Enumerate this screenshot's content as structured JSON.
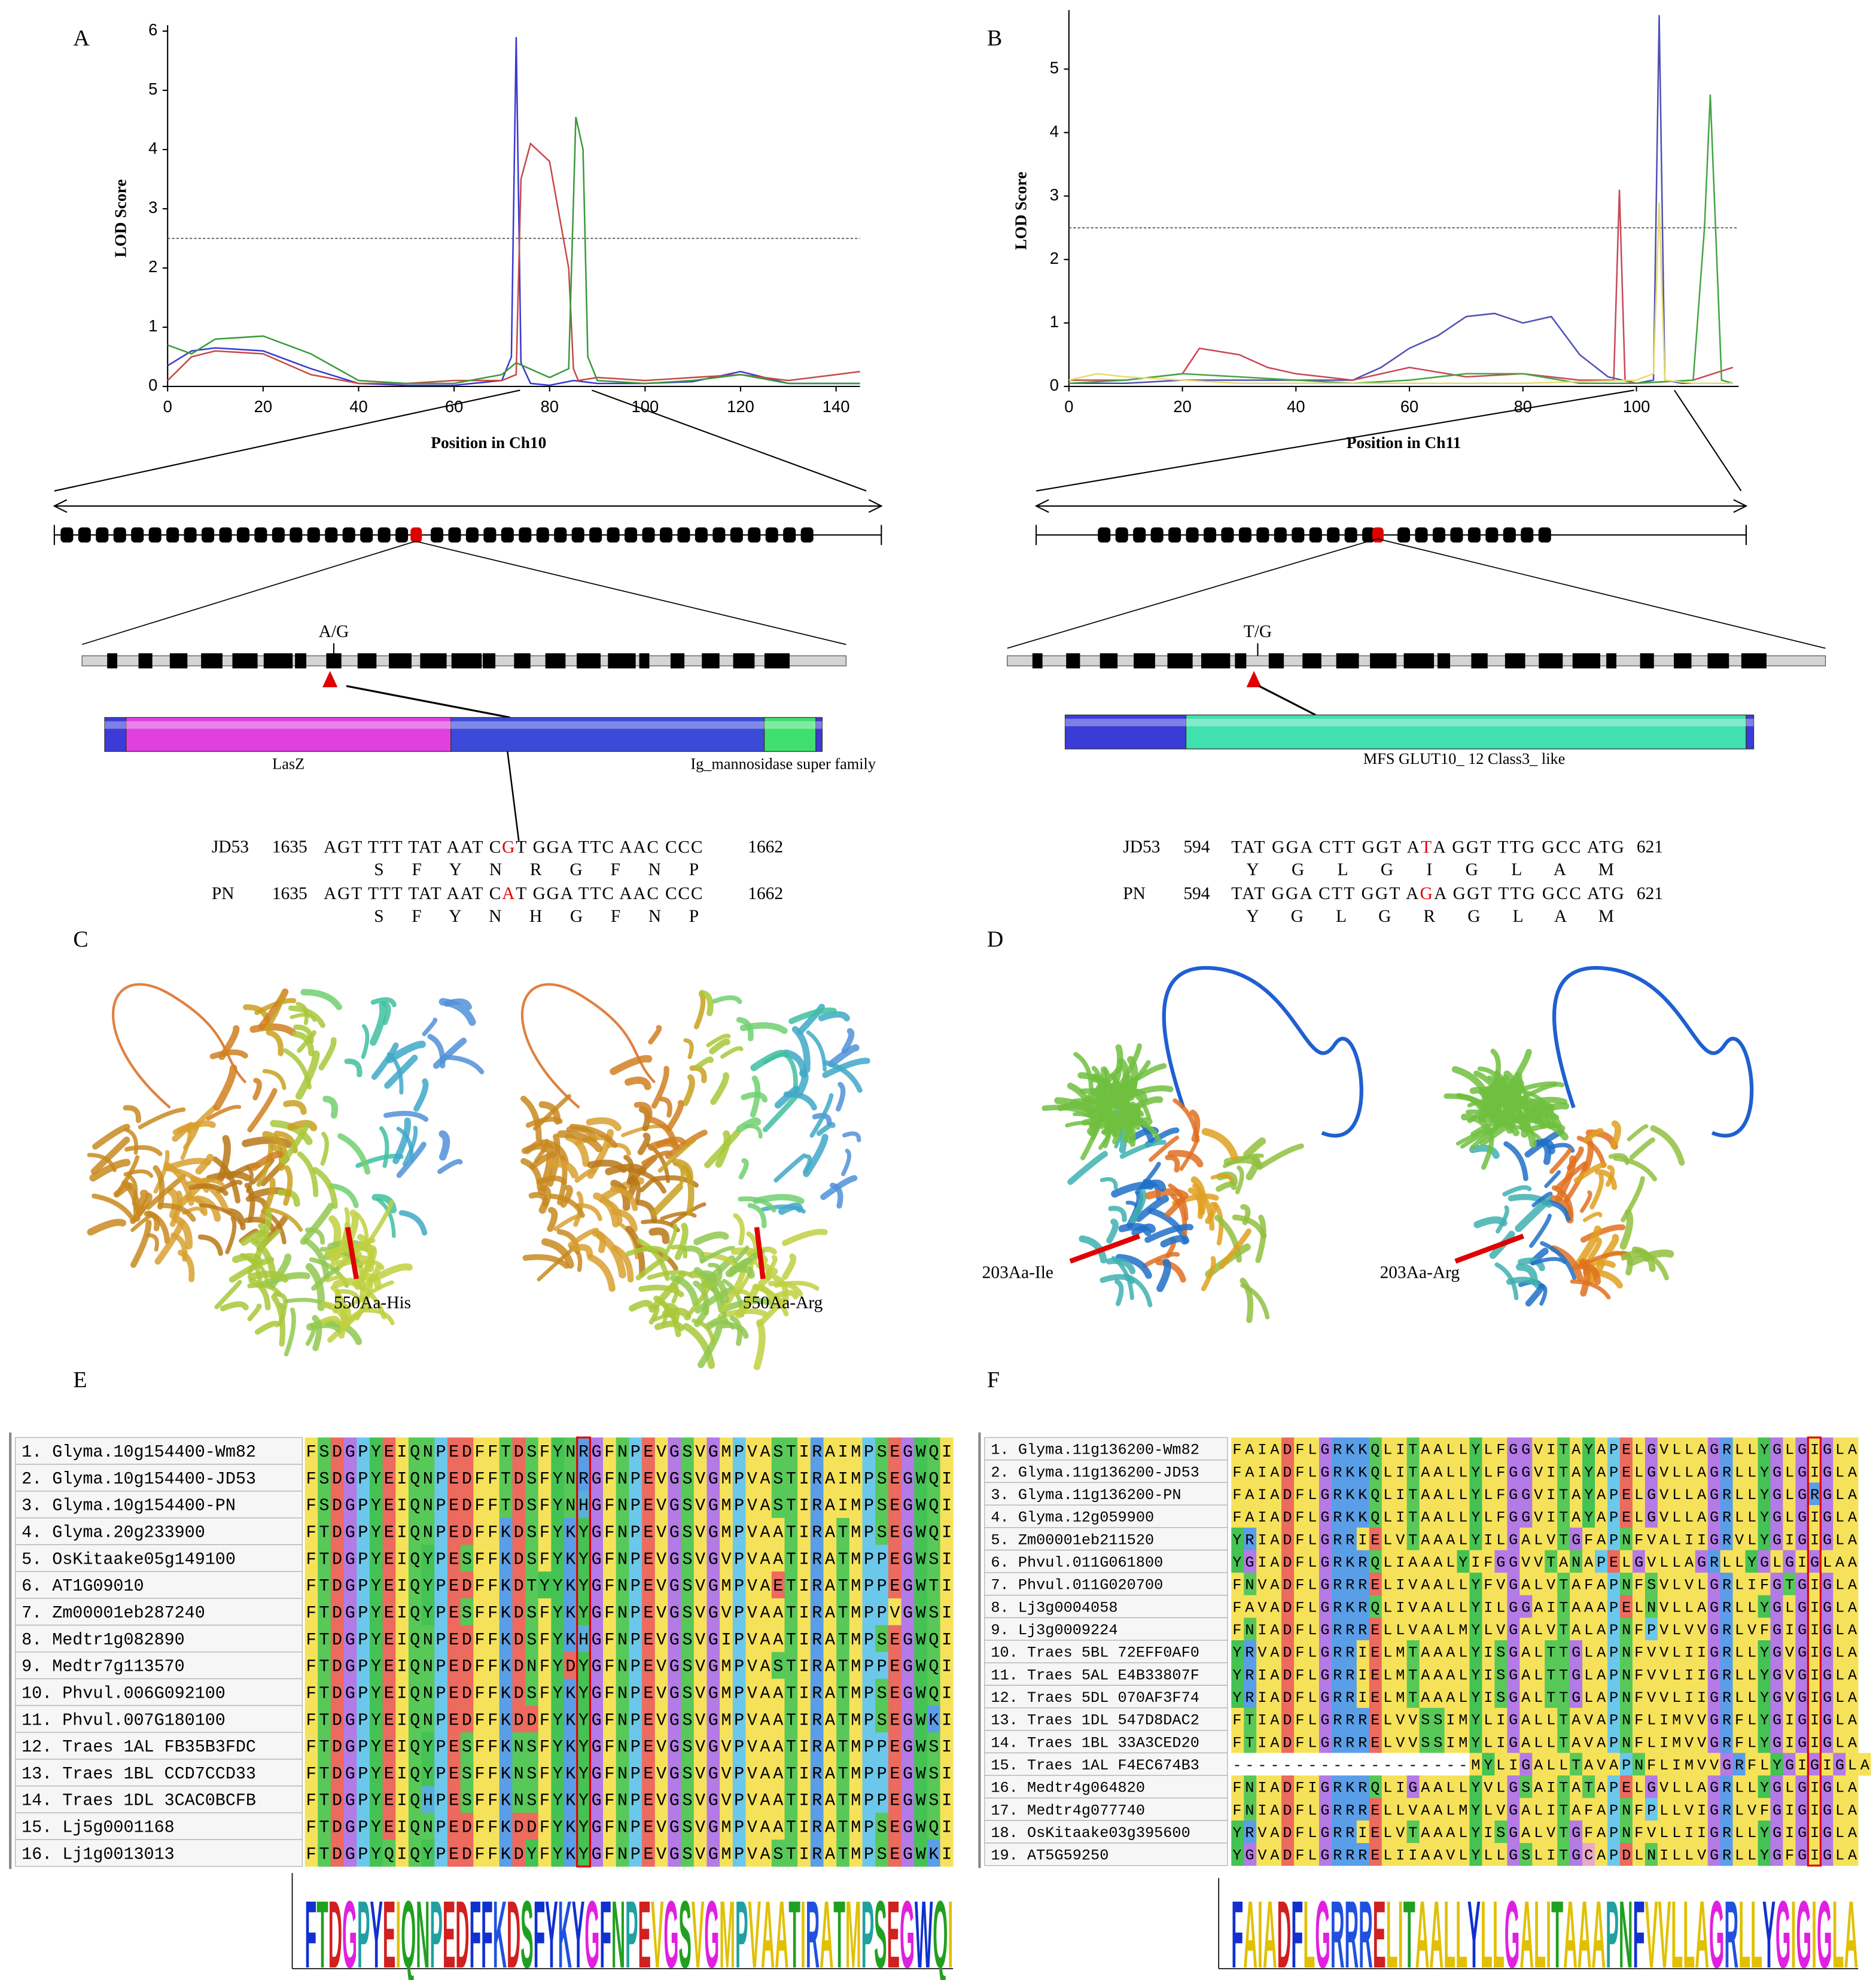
{
  "panel_labels": [
    "A",
    "B",
    "C",
    "D",
    "E",
    "F"
  ],
  "chart_data": [
    {
      "type": "line",
      "xlabel": "Position in Ch10",
      "ylabel": "LOD Score",
      "xlim": [
        0,
        145
      ],
      "ylim": [
        0,
        6.1
      ],
      "xticks": [
        0,
        20,
        40,
        60,
        80,
        100,
        120,
        140
      ],
      "yticks": [
        0,
        1,
        2,
        3,
        4,
        5,
        6
      ],
      "threshold": 2.5,
      "series": [
        {
          "color": "#3a3ad0",
          "x": [
            0,
            5,
            10,
            20,
            30,
            40,
            50,
            60,
            70,
            72,
            73,
            74,
            76,
            80,
            85,
            90,
            100,
            110,
            120,
            130,
            140,
            145
          ],
          "values": [
            0.35,
            0.6,
            0.65,
            0.6,
            0.3,
            0.05,
            0.02,
            0.02,
            0.1,
            0.5,
            5.9,
            0.4,
            0.05,
            0.02,
            0.1,
            0.05,
            0.05,
            0.08,
            0.25,
            0.05,
            0.05,
            0.05
          ]
        },
        {
          "color": "#c84848",
          "x": [
            0,
            5,
            10,
            20,
            30,
            40,
            50,
            60,
            70,
            73,
            74,
            76,
            80,
            84,
            85,
            86,
            90,
            100,
            110,
            120,
            130,
            140,
            145
          ],
          "values": [
            0.1,
            0.5,
            0.6,
            0.55,
            0.2,
            0.05,
            0.05,
            0.1,
            0.1,
            0.2,
            3.5,
            4.1,
            3.8,
            2.0,
            0.3,
            0.1,
            0.15,
            0.1,
            0.15,
            0.2,
            0.1,
            0.2,
            0.25
          ]
        },
        {
          "color": "#3a9a3a",
          "x": [
            0,
            5,
            10,
            20,
            30,
            40,
            50,
            60,
            70,
            73,
            80,
            84,
            85.5,
            87,
            88,
            90,
            100,
            110,
            120,
            130,
            140,
            145
          ],
          "values": [
            0.7,
            0.55,
            0.8,
            0.85,
            0.55,
            0.1,
            0.05,
            0.05,
            0.2,
            0.4,
            0.15,
            0.3,
            4.55,
            4.0,
            0.5,
            0.1,
            0.05,
            0.1,
            0.2,
            0.05,
            0.05,
            0.05
          ]
        }
      ]
    },
    {
      "type": "line",
      "xlabel": "Position in Ch11",
      "ylabel": "LOD Score",
      "xlim": [
        0,
        118
      ],
      "ylim": [
        0,
        5.93
      ],
      "xticks": [
        0,
        20,
        40,
        60,
        80,
        100
      ],
      "yticks": [
        0,
        1,
        2,
        3,
        4,
        5
      ],
      "threshold": 2.5,
      "series": [
        {
          "color": "#5050b4",
          "x": [
            0,
            10,
            20,
            30,
            40,
            50,
            55,
            60,
            65,
            70,
            75,
            80,
            85,
            90,
            95,
            100,
            103,
            104,
            105,
            108,
            112,
            117
          ],
          "values": [
            0.05,
            0.05,
            0.1,
            0.1,
            0.1,
            0.1,
            0.3,
            0.6,
            0.8,
            1.1,
            1.15,
            1.0,
            1.1,
            0.5,
            0.15,
            0.05,
            0.1,
            5.85,
            0.1,
            0.05,
            0.05,
            0.05
          ]
        },
        {
          "color": "#c84858",
          "x": [
            0,
            10,
            20,
            23,
            30,
            35,
            40,
            50,
            60,
            70,
            80,
            90,
            96,
            97,
            98,
            100,
            110,
            117
          ],
          "values": [
            0.1,
            0.1,
            0.2,
            0.6,
            0.5,
            0.3,
            0.2,
            0.1,
            0.3,
            0.15,
            0.2,
            0.1,
            0.1,
            3.1,
            0.1,
            0.05,
            0.1,
            0.3
          ]
        },
        {
          "color": "#44a444",
          "x": [
            0,
            10,
            20,
            30,
            40,
            50,
            60,
            70,
            80,
            90,
            100,
            110,
            112,
            113,
            115,
            117
          ],
          "values": [
            0.05,
            0.1,
            0.2,
            0.15,
            0.1,
            0.05,
            0.1,
            0.2,
            0.2,
            0.05,
            0.05,
            0.1,
            2.5,
            4.6,
            0.1,
            0.05
          ]
        },
        {
          "color": "#e6dc70",
          "x": [
            0,
            5,
            10,
            20,
            30,
            60,
            80,
            100,
            103,
            104,
            105,
            110,
            117
          ],
          "values": [
            0.1,
            0.2,
            0.15,
            0.1,
            0.05,
            0.05,
            0.05,
            0.1,
            0.2,
            2.9,
            0.1,
            0.05,
            0.05
          ]
        }
      ]
    }
  ],
  "genes": [
    {
      "snp": "A/G",
      "domains": [
        "LasZ",
        "Ig_mannosidase super family"
      ],
      "rows": [
        {
          "name": "JD53",
          "start": 1635,
          "seq": [
            "AGT TTT TAT AAT C",
            "G",
            "T GGA TTC AAC CCC"
          ],
          "end": 1662,
          "aa": "S F Y N R G F N P"
        },
        {
          "name": "PN",
          "start": 1635,
          "seq": [
            "AGT TTT TAT AAT C",
            "A",
            "T GGA TTC AAC CCC"
          ],
          "end": 1662,
          "aa": "S F Y N H G F N P"
        }
      ]
    },
    {
      "snp": "T/G",
      "domains": [
        "MFS GLUT10_ 12 Class3_ like"
      ],
      "rows": [
        {
          "name": "JD53",
          "start": 594,
          "seq": [
            "TAT GGA CTT GGT A",
            "T",
            "A GGT TTG GCC ATG"
          ],
          "end": 621,
          "aa": "Y G L G I G L A M"
        },
        {
          "name": "PN",
          "start": 594,
          "seq": [
            "TAT GGA CTT GGT A",
            "G",
            "A GGT TTG GCC ATG"
          ],
          "end": 621,
          "aa": "Y G L G R G L A M"
        }
      ]
    }
  ],
  "structures": [
    {
      "labels": [
        "550Aa-His",
        "550Aa-Arg"
      ]
    },
    {
      "labels": [
        "203Aa-Ile",
        "203Aa-Arg"
      ]
    }
  ],
  "alignments": [
    {
      "names": [
        "1. Glyma.10g154400-Wm82",
        "2. Glyma.10g154400-JD53",
        "3. Glyma.10g154400-PN",
        "4. Glyma.20g233900",
        "5. OsKitaake05g149100",
        "6. AT1G09010",
        "7. Zm00001eb287240",
        "8. Medtr1g082890",
        "9. Medtr7g113570",
        "10. Phvul.006G092100",
        "11. Phvul.007G180100",
        "12. Traes 1AL FB35B3FDC",
        "13. Traes 1BL CCD7CCD33",
        "14. Traes 1DL 3CAC0BCFB",
        "15. Lj5g0001168",
        "16. Lj1g0013013"
      ],
      "seqs": [
        "FSDGPYEIQNPEDFFTDSFYNRGFNPEVGSVGMPVASTIRAIMPSEGWQI",
        "FSDGPYEIQNPEDFFTDSFYNRGFNPEVGSVGMPVASTIRAIMPSEGWQI",
        "FSDGPYEIQNPEDFFTDSFYNHGFNPEVGSVGMPVASTIRAIMPSEGWQI",
        "FTDGPYEIQNPEDFFKDSFYKYGFNPEVGSVGMPVAATIRATMPSEGWQI",
        "FTDGPYEIQYPESFFKDSFYKYGFNPEVGSVGVPVAATIRATMPPEGWSI",
        "FTDGPYEIQYPEDFFKDTYYKYGFNPEVGSVGMPVAETIRATMPPEGWTI",
        "FTDGPYEIQYPESFFKDSFYKYGFNPEVGSVGVPVAATIRATMPPVGWSI",
        "FTDGPYEIQNPEDFFKDSFYKHGFNPEVGSVGIPVAATIRATMPSEGWQI",
        "FTDGPYEIQNPEDFFKDNFYDYGFNPEVGSVGMPVASTIRATMPPEGWQI",
        "FTDGPYEIQNPEDFFKDSFYKYGFNPEVGSVGMPVAATIRATMPSEGWQI",
        "FTDGPYEIQNPEDFFKDDFYKYGFNPEVGSVGMPVAATIRATMPSEGWKI",
        "FTDGPYEIQYPESFFKNSFYKYGFNPEVGSVGVPVAATIRATMPPEGWSI",
        "FTDGPYEIQYPESFFKNSFYKYGFNPEVGSVGVPVAATIRATMPPEGWSI",
        "FTDGPYEIQHPESFFKNSFYKYGFNPEVGSVGVPVAATIRATMPPEGWSI",
        "FTDGPYEIQNPEDFFKDDFYKYGFNPEVGSVGMPVAATIRATMPSEGWQI",
        "FTDGPYQIQYPEDFFKDYFYKYGFNPEVGSVGMPVASTIRATMPSEGWKI"
      ],
      "logo": "FTDGPYEIQNPEDFFKDSFYKYGFNPEVGSVGMPVAATIRATMPSEGWQI"
    },
    {
      "names": [
        "1. Glyma.11g136200-Wm82",
        "2. Glyma.11g136200-JD53",
        "3. Glyma.11g136200-PN",
        "4. Glyma.12g059900",
        "5. Zm00001eb211520",
        "6. Phvul.011G061800",
        "7. Phvul.011G020700",
        "8. Lj3g0004058",
        "9. Lj3g0009224",
        "10. Traes 5BL 72EFF0AF0",
        "11. Traes 5AL E4B33807F",
        "12. Traes 5DL 070AF3F74",
        "13. Traes 1DL 547D8DAC2",
        "14. Traes 1BL 33A3CED20",
        "15. Traes 1AL F4EC674B3",
        "16. Medtr4g064820",
        "17. Medtr4g077740",
        "18. OsKitaake03g395600",
        "19. AT5G59250"
      ],
      "seqs": [
        "FAIADFLGRKKQLITAALLYLFGGVITAYAPELGVLLAGRLLYGLGIGLA",
        "FAIADFLGRKKQLITAALLYLFGGVITAYAPELGVLLAGRLLYGLGIGLA",
        "FAIADFLGRKKQLITAALLYLFGGVITAYAPELGVLLAGRLLYGLGRGLA",
        "FAIADFLGRKKQLITAALLYLFGGVITAYAPELGVLLAGRLLYGLGIGLA",
        "YRIADFLGRRIELVTAAALYILGALVTGFAPNFVALIIGRVLYGIGIGLA",
        "YGIADFLGRKRQLIAAALYIFGGVVTANAPELGVLLAGRLLYGLGIGLAA",
        "FNVADFLGRRRELIVAALLYFVGALVTAFAPNFSVLVLGRLIFGTGIGLA",
        "FAVADFLGRKRQLIVAALLYILGGAITAAAPELNVLLAGRLLYGLGIGLA",
        "FNIADFLGRRRELLVAALMYLVGALVTALAPNFPVLVVGRLVFGIGIGLA",
        "YRVADFLGRRIELMTAAALYISGALTTGLAPNFVVLIIGRLLYGVGIGLA",
        "YRIADFLGRRIELMTAAALYISGALTTGLAPNFVVLIIGRLLYGVGIGLA",
        "YRIADFLGRRIELMTAAALYISGALTTGLAPNFVVLIIGRLLYGVGIGLA",
        "FTIADFLGRRRELVVSSIMYLIGALLTAVAPNFLIMVVGRFLYGIGIGLA",
        "FTIADFLGRRRELVVSSIMYLIGALLTAVAPNFLIMVVGRFLYGIGIGLA",
        "-------------------MYLIGALLTAVAPNFLIMVVGRFLYGIGIGLA",
        "FNIADFIGRKRQLIGAALLYVLGSAITATAPELGVLLAGRLLYGLGIGLA",
        "FNIADFLGRRRELLVAALMYLVGALITAFAPNFPLLVIGRLVFGIGIGLA",
        "YRVADFLGRRIELVTAAALYISGALVTGFAPNFVLLIIGRLLYGIGIGLA",
        "YGVADFLGRRRELIIAAVLYLLGSLITGCAPDLNILLVGRLLYGFGIGLA"
      ],
      "logo": "FAIADFLGRRRELITAALLYLLGALITAAAPNFVVLLAGRLLYGIGIGLA"
    }
  ]
}
